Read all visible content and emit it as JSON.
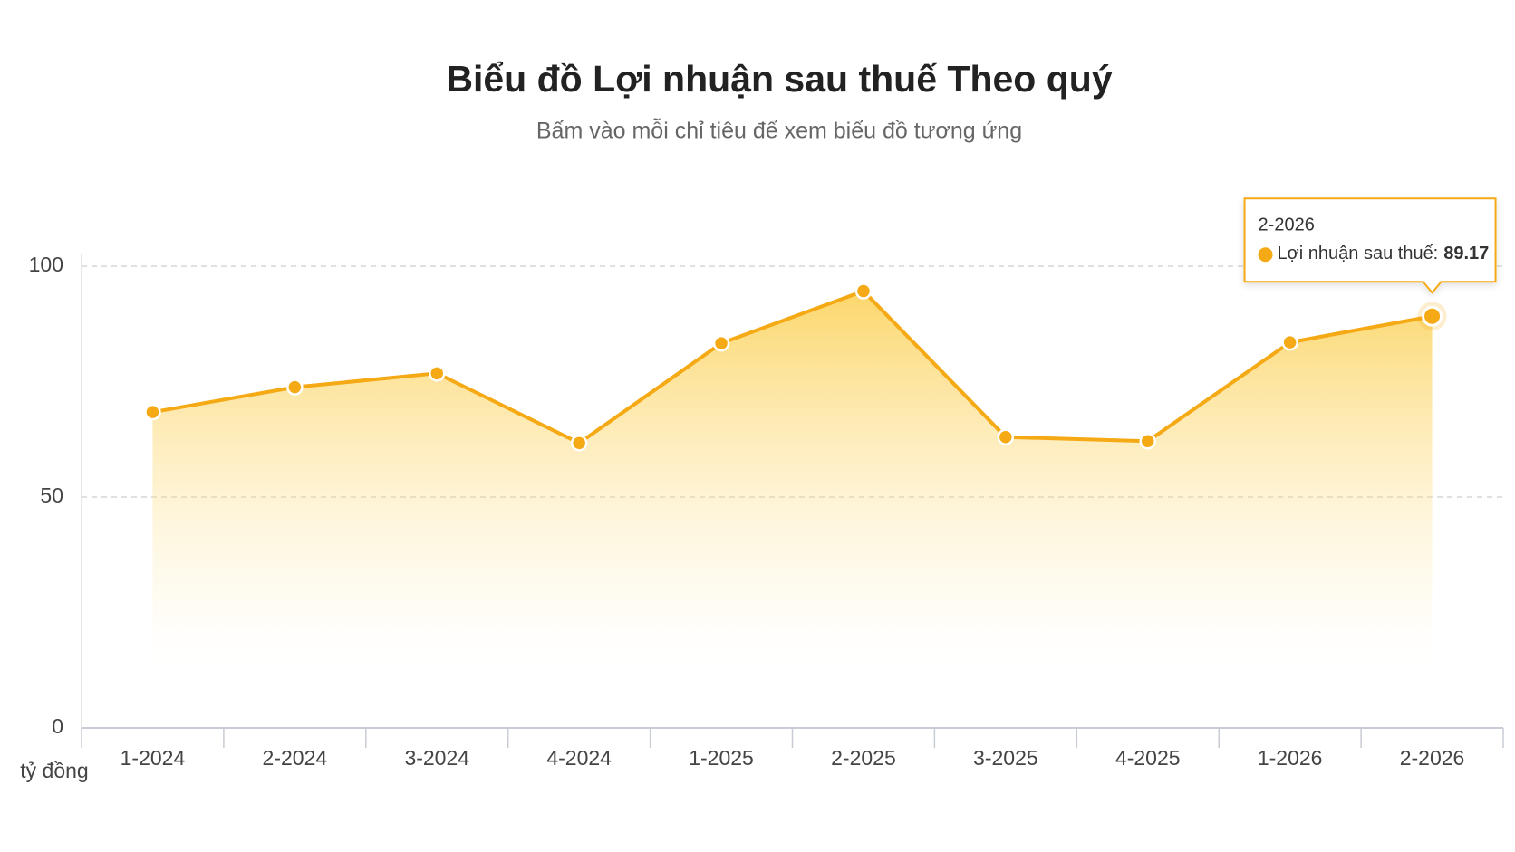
{
  "chart_data": {
    "type": "area-line",
    "title": "Biểu đồ Lợi nhuận sau thuế Theo quý",
    "subtitle": "Bấm vào mỗi chỉ tiêu để xem biểu đồ tương ứng",
    "ylabel": "tỷ đồng",
    "categories": [
      "1-2024",
      "2-2024",
      "3-2024",
      "4-2024",
      "1-2025",
      "2-2025",
      "3-2025",
      "4-2025",
      "1-2026",
      "2-2026"
    ],
    "series": [
      {
        "name": "Lợi nhuận sau thuế:",
        "color": "#f5a914",
        "values": [
          68.4,
          73.8,
          76.8,
          61.7,
          83.3,
          94.6,
          63.0,
          62.1,
          83.5,
          89.17
        ]
      }
    ],
    "ylim": [
      0,
      100
    ],
    "yticks": [
      0,
      50,
      100
    ],
    "grid": true
  }
}
